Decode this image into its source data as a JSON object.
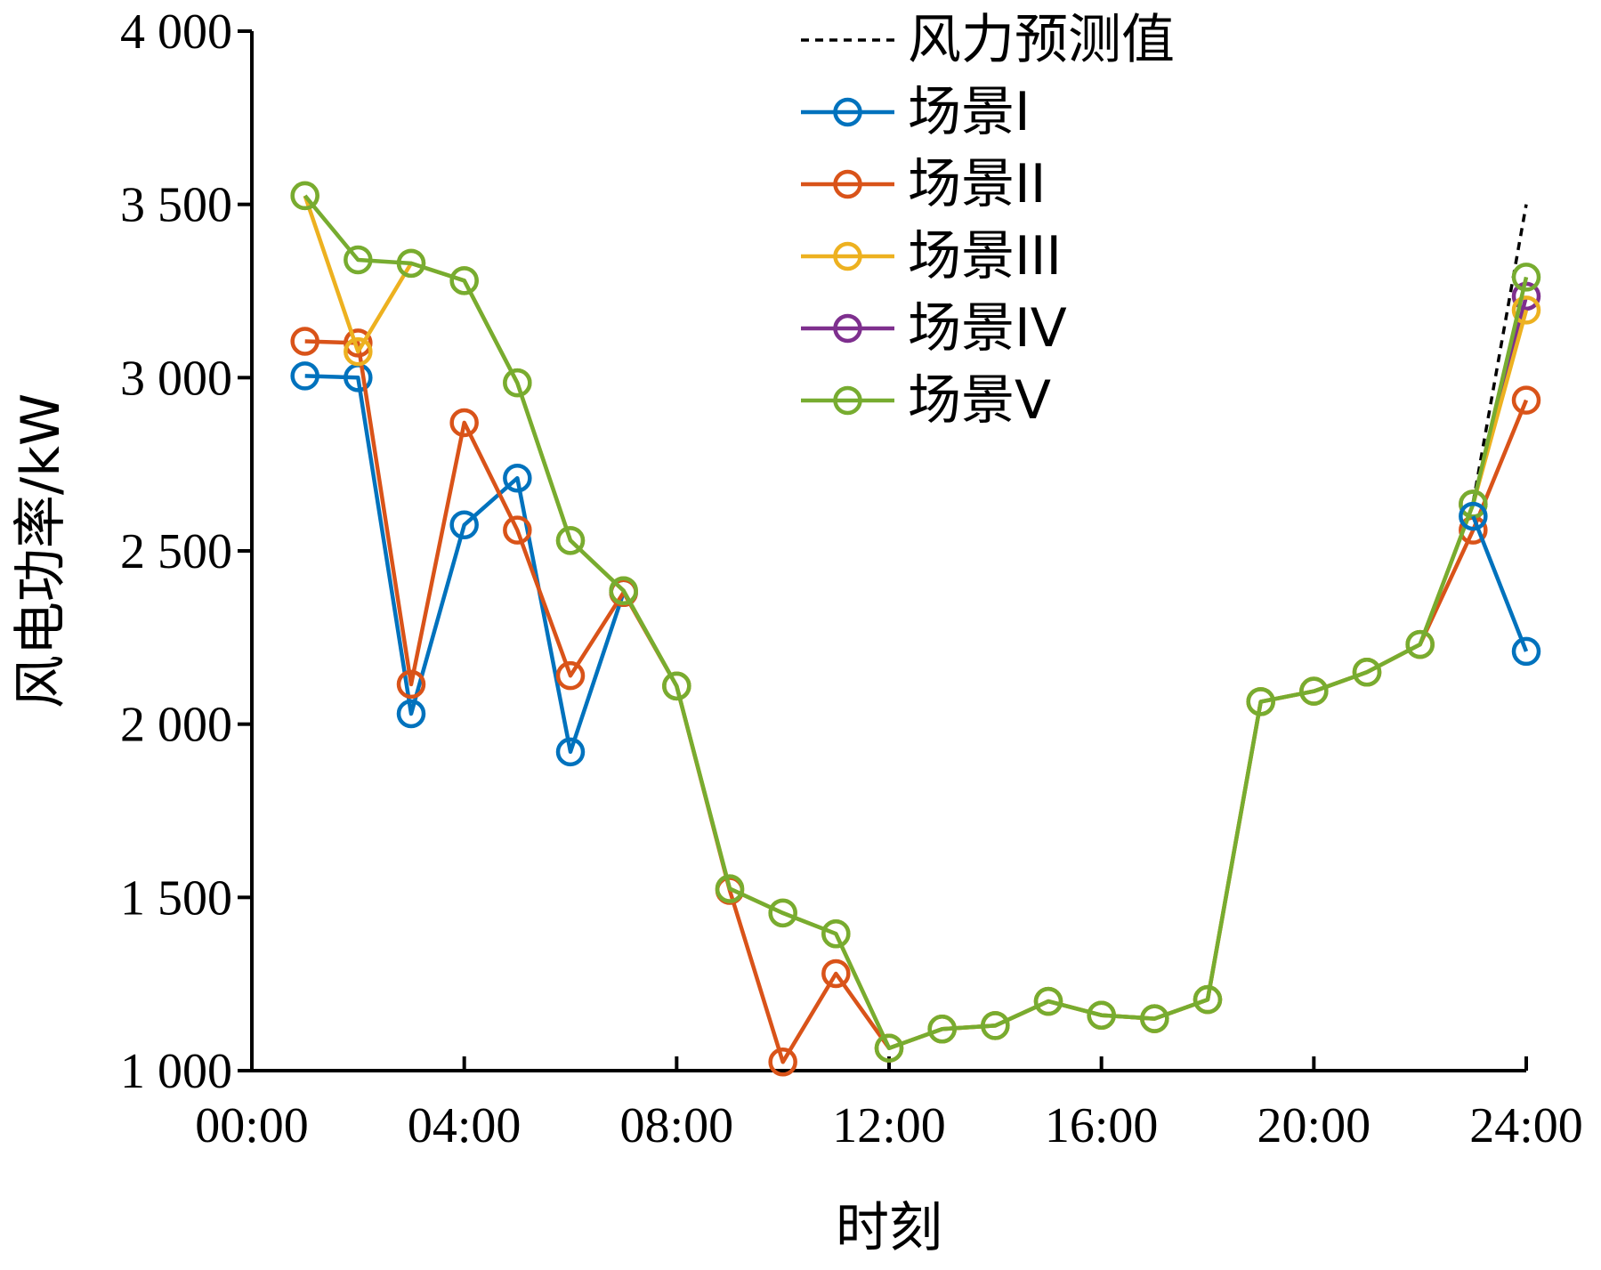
{
  "chart_data": {
    "type": "line",
    "xlabel": "时刻",
    "ylabel": "风电功率/kW",
    "xlim": [
      0,
      24
    ],
    "ylim": [
      1000,
      4000
    ],
    "x_ticks": [
      0,
      4,
      8,
      12,
      16,
      20,
      24
    ],
    "x_tick_labels": [
      "00:00",
      "04:00",
      "08:00",
      "12:00",
      "16:00",
      "20:00",
      "24:00"
    ],
    "y_ticks": [
      1000,
      1500,
      2000,
      2500,
      3000,
      3500,
      4000
    ],
    "y_tick_labels": [
      "1 000",
      "1 500",
      "2 000",
      "2 500",
      "3 000",
      "3 500",
      "4 000"
    ],
    "grid": false,
    "legend_position": "top-right",
    "series": [
      {
        "name": "风力预测值",
        "color": "#000000",
        "style": "dashed",
        "marker": "none",
        "x": [
          23,
          24
        ],
        "values": [
          2640,
          3500
        ]
      },
      {
        "name": "场景I",
        "color": "#0072BD",
        "style": "solid",
        "marker": "circle",
        "x": [
          1,
          2,
          3,
          4,
          5,
          6,
          7
        ],
        "values": [
          3005,
          3000,
          2030,
          2575,
          2710,
          1920,
          2380
        ]
      },
      {
        "name": "场景II",
        "color": "#D95319",
        "style": "solid",
        "marker": "circle",
        "x": [
          1,
          2,
          3,
          4,
          5,
          6,
          7,
          8,
          9,
          10,
          11,
          12,
          13,
          14,
          15,
          16,
          17,
          18,
          19,
          20,
          21,
          22,
          23,
          24
        ],
        "values": [
          3105,
          3100,
          2115,
          2870,
          2560,
          2140,
          2380,
          2110,
          1520,
          1025,
          1280,
          1065,
          1120,
          1130,
          1200,
          1160,
          1150,
          1205,
          2065,
          2095,
          2150,
          2230,
          2560,
          2935
        ]
      },
      {
        "name": "场景III",
        "color": "#EDB120",
        "style": "solid",
        "marker": "circle",
        "x": [
          1,
          2,
          3,
          4,
          5,
          6,
          7,
          8,
          9,
          10,
          11,
          12,
          13,
          14,
          15,
          16,
          17,
          18,
          19,
          20,
          21,
          22,
          23,
          24
        ],
        "values": [
          3525,
          3075,
          3330,
          3280,
          2985,
          2530,
          2385,
          2110,
          1525,
          1455,
          1395,
          1065,
          1120,
          1130,
          1200,
          1160,
          1150,
          1205,
          2065,
          2095,
          2150,
          2230,
          2635,
          3195
        ]
      },
      {
        "name": "场景IV",
        "color": "#7E2F8E",
        "style": "solid",
        "marker": "circle",
        "x": [
          23,
          24
        ],
        "values": [
          2635,
          3235
        ]
      },
      {
        "name": "场景V",
        "color": "#77AC30",
        "style": "solid",
        "marker": "circle",
        "x": [
          1,
          2,
          3,
          4,
          5,
          6,
          7,
          8,
          9,
          10,
          11,
          12,
          13,
          14,
          15,
          16,
          17,
          18,
          19,
          20,
          21,
          22,
          23,
          24
        ],
        "values": [
          3525,
          3340,
          3330,
          3280,
          2985,
          2530,
          2385,
          2110,
          1525,
          1455,
          1395,
          1065,
          1120,
          1130,
          1200,
          1160,
          1150,
          1205,
          2065,
          2095,
          2150,
          2230,
          2635,
          3290
        ]
      }
    ],
    "extra_points": [
      {
        "series": "场景I",
        "color": "#0072BD",
        "x": [
          23,
          24
        ],
        "values": [
          2600,
          2210
        ]
      }
    ]
  }
}
